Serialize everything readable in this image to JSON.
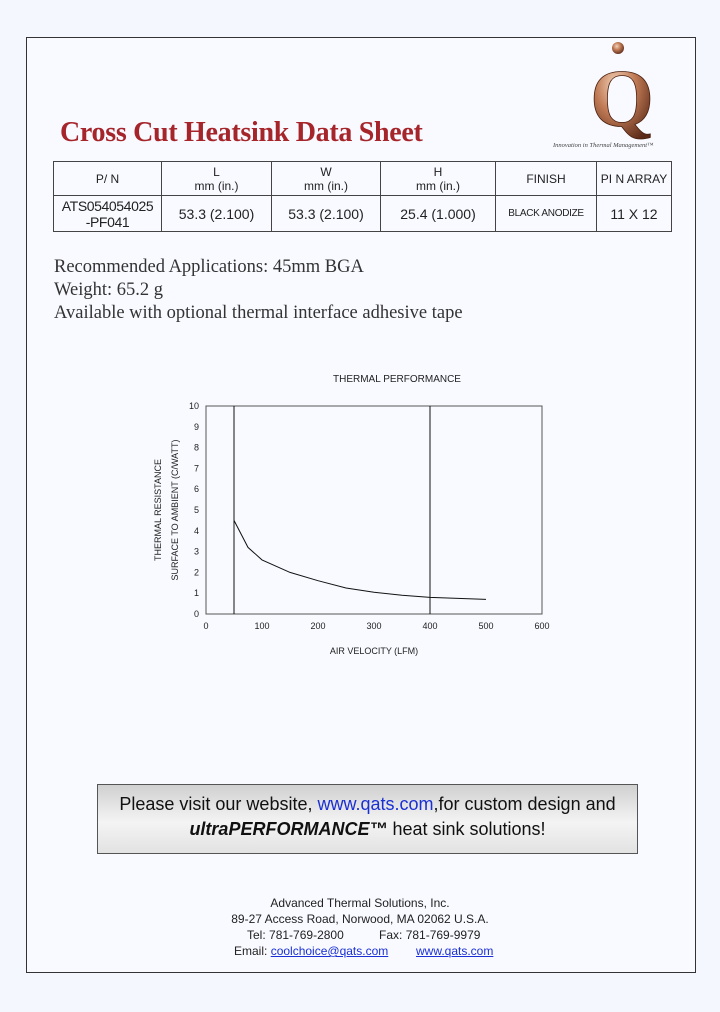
{
  "header": {
    "title": "Cross Cut Heatsink Data Sheet",
    "logo_letter": "Q",
    "tagline": "Innovation in Thermal Management™"
  },
  "spec_table": {
    "headers": {
      "pn": "P/ N",
      "l": [
        "L",
        "mm (in.)"
      ],
      "w": [
        "W",
        "mm (in.)"
      ],
      "h": [
        "H",
        "mm (in.)"
      ],
      "finish": "FINISH",
      "pin_array": "PI N ARRAY"
    },
    "row": {
      "pn": [
        "ATS054054025",
        "-PF041"
      ],
      "l": "53.3  (2.100)",
      "w": "53.3  (2.100)",
      "h": "25.4 (1.000)",
      "finish": "BLACK ANODIZE",
      "pin_array": "11 X 12"
    }
  },
  "notes": [
    "Recommended Applications: 45mm BGA",
    "Weight: 65.2 g",
    "Available with optional thermal interface adhesive tape"
  ],
  "chart_data": {
    "type": "line",
    "title": "THERMAL PERFORMANCE",
    "xlabel": "AIR VELOCITY (LFM)",
    "ylabel": [
      "THERMAL RESISTANCE",
      "SURFACE TO AMBIENT (C/WATT)"
    ],
    "xlim": [
      0,
      600
    ],
    "ylim": [
      0,
      10
    ],
    "xticks": [
      0,
      100,
      200,
      300,
      400,
      500,
      600
    ],
    "yticks": [
      0,
      1,
      2,
      3,
      4,
      5,
      6,
      7,
      8,
      9,
      10
    ],
    "grid": false,
    "vlines": [
      50,
      400
    ],
    "series": [
      {
        "x": [
          50,
          75,
          100,
          150,
          200,
          250,
          300,
          350,
          400,
          450,
          500
        ],
        "y": [
          4.5,
          3.2,
          2.6,
          2.0,
          1.6,
          1.25,
          1.05,
          0.9,
          0.8,
          0.75,
          0.7
        ]
      }
    ]
  },
  "banner": {
    "l1_pre": "Please visit our website, ",
    "l1_link": "www.qats.com",
    "l1_post": ",for custom design and",
    "l2_brand": "ultraPERFORMANCE™",
    "l2_post": " heat sink solutions!"
  },
  "footer": {
    "company": "Advanced Thermal Solutions, Inc.",
    "address": "89-27 Access Road, Norwood, MA 02062 U.S.A.",
    "tel_label": "Tel:",
    "tel": "781-769-2800",
    "fax_label": "Fax:",
    "fax": "781-769-9979",
    "email_label": "Email:",
    "email": "coolchoice@qats.com",
    "website": "www.qats.com"
  },
  "colors": {
    "title": "#a5252a",
    "logo": "#b06a4a",
    "link": "#1a2fd4"
  }
}
